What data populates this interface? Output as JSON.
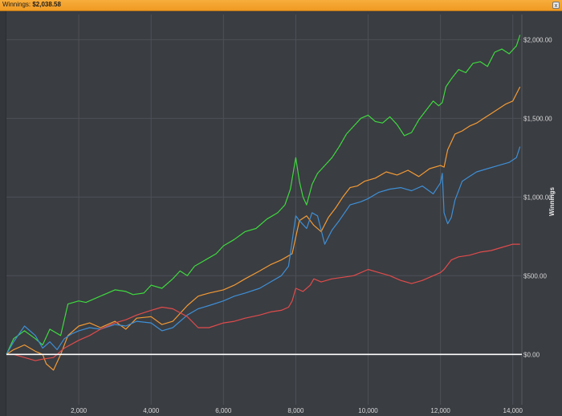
{
  "window": {
    "title_label": "Winnings:",
    "title_value": "$2,038.58",
    "close_glyph": "x"
  },
  "colors": {
    "background": "#3a3d42",
    "grid": "#4d5157",
    "zero_line": "#ffffff",
    "green": "#3ed93e",
    "orange": "#f39a34",
    "blue": "#3e8fd6",
    "red": "#e04b4b"
  },
  "chart_data": {
    "type": "line",
    "title": "",
    "xlabel": "",
    "ylabel": "Winnings",
    "xlim": [
      0,
      14250
    ],
    "ylim": [
      -320,
      2160
    ],
    "x_ticks": [
      2000,
      4000,
      6000,
      8000,
      10000,
      12000,
      14000
    ],
    "x_tick_labels": [
      "2,000",
      "4,000",
      "6,000",
      "8,000",
      "10,000",
      "12,000",
      "14,000"
    ],
    "y_ticks": [
      0,
      500,
      1000,
      1500,
      2000
    ],
    "y_tick_labels": [
      "$0.00",
      "$500.00",
      "$1,000.00",
      "$1,500.00",
      "$2,000.00"
    ],
    "grid": true,
    "y_axis_position": "right",
    "series": [
      {
        "color_key": "green",
        "x": [
          0,
          200,
          500,
          800,
          1000,
          1200,
          1500,
          1700,
          2000,
          2200,
          2500,
          2800,
          3000,
          3300,
          3500,
          3800,
          4000,
          4300,
          4600,
          4800,
          5000,
          5200,
          5500,
          5800,
          6000,
          6300,
          6600,
          6900,
          7200,
          7500,
          7700,
          7850,
          8000,
          8100,
          8200,
          8300,
          8450,
          8600,
          8800,
          9000,
          9200,
          9400,
          9600,
          9800,
          10000,
          10200,
          10400,
          10600,
          10800,
          11000,
          11200,
          11400,
          11600,
          11800,
          11950,
          12050,
          12150,
          12300,
          12500,
          12700,
          12900,
          13100,
          13300,
          13500,
          13700,
          13900,
          14100,
          14200
        ],
        "y": [
          0,
          100,
          150,
          100,
          60,
          160,
          120,
          320,
          340,
          330,
          360,
          390,
          410,
          400,
          380,
          390,
          440,
          420,
          480,
          530,
          500,
          560,
          600,
          640,
          690,
          730,
          780,
          800,
          860,
          900,
          950,
          1050,
          1250,
          1100,
          1000,
          950,
          1080,
          1150,
          1200,
          1250,
          1320,
          1400,
          1450,
          1500,
          1520,
          1480,
          1470,
          1510,
          1460,
          1390,
          1410,
          1490,
          1550,
          1610,
          1580,
          1600,
          1700,
          1750,
          1810,
          1790,
          1850,
          1860,
          1830,
          1920,
          1940,
          1910,
          1960,
          2030
        ]
      },
      {
        "color_key": "orange",
        "x": [
          0,
          200,
          500,
          800,
          1000,
          1100,
          1300,
          1500,
          1700,
          2000,
          2300,
          2600,
          3000,
          3300,
          3600,
          4000,
          4300,
          4600,
          5000,
          5300,
          5600,
          6000,
          6300,
          6600,
          7000,
          7300,
          7600,
          7900,
          8100,
          8300,
          8500,
          8700,
          8900,
          9100,
          9300,
          9500,
          9700,
          9900,
          10200,
          10500,
          10800,
          11100,
          11400,
          11700,
          12000,
          12100,
          12200,
          12400,
          12600,
          12800,
          13000,
          13200,
          13400,
          13600,
          13800,
          14000,
          14200
        ],
        "y": [
          0,
          30,
          60,
          20,
          0,
          -60,
          -100,
          0,
          120,
          180,
          200,
          170,
          210,
          160,
          230,
          240,
          190,
          210,
          310,
          370,
          390,
          410,
          440,
          480,
          530,
          570,
          600,
          640,
          850,
          880,
          820,
          780,
          870,
          930,
          1000,
          1060,
          1070,
          1100,
          1120,
          1160,
          1140,
          1170,
          1130,
          1180,
          1200,
          1190,
          1300,
          1400,
          1420,
          1450,
          1470,
          1500,
          1530,
          1560,
          1590,
          1610,
          1700
        ]
      },
      {
        "color_key": "blue",
        "x": [
          0,
          200,
          500,
          800,
          1000,
          1200,
          1400,
          1600,
          1800,
          2000,
          2300,
          2600,
          3000,
          3300,
          3600,
          4000,
          4300,
          4600,
          5000,
          5300,
          5600,
          6000,
          6300,
          6600,
          7000,
          7300,
          7600,
          7800,
          7900,
          8000,
          8100,
          8300,
          8450,
          8600,
          8800,
          9000,
          9200,
          9500,
          9800,
          10000,
          10300,
          10600,
          10900,
          11200,
          11500,
          11800,
          12000,
          12050,
          12100,
          12200,
          12300,
          12400,
          12600,
          12800,
          13000,
          13300,
          13600,
          13900,
          14100,
          14200
        ],
        "y": [
          0,
          80,
          180,
          120,
          40,
          80,
          30,
          100,
          130,
          150,
          170,
          160,
          190,
          180,
          210,
          200,
          150,
          170,
          250,
          290,
          310,
          340,
          370,
          390,
          420,
          460,
          500,
          560,
          720,
          880,
          850,
          800,
          900,
          880,
          700,
          790,
          850,
          950,
          970,
          990,
          1030,
          1050,
          1060,
          1040,
          1070,
          1020,
          1090,
          1150,
          900,
          830,
          870,
          980,
          1100,
          1130,
          1160,
          1180,
          1200,
          1220,
          1250,
          1320
        ]
      },
      {
        "color_key": "red",
        "x": [
          0,
          200,
          500,
          800,
          1000,
          1300,
          1600,
          2000,
          2300,
          2600,
          3000,
          3300,
          3600,
          4000,
          4300,
          4600,
          5000,
          5300,
          5600,
          6000,
          6300,
          6600,
          7000,
          7300,
          7600,
          7800,
          7900,
          8000,
          8200,
          8400,
          8500,
          8700,
          9000,
          9300,
          9600,
          9800,
          10000,
          10300,
          10600,
          10900,
          11200,
          11500,
          11800,
          12000,
          12100,
          12300,
          12500,
          12800,
          13100,
          13400,
          13700,
          14000,
          14200
        ],
        "y": [
          0,
          0,
          -20,
          -40,
          -30,
          -20,
          40,
          90,
          120,
          160,
          200,
          220,
          250,
          280,
          300,
          290,
          240,
          170,
          170,
          200,
          210,
          230,
          250,
          270,
          280,
          300,
          340,
          420,
          400,
          440,
          480,
          460,
          480,
          490,
          500,
          520,
          540,
          520,
          500,
          470,
          450,
          470,
          500,
          520,
          540,
          600,
          620,
          630,
          650,
          660,
          680,
          700,
          700
        ]
      }
    ]
  }
}
